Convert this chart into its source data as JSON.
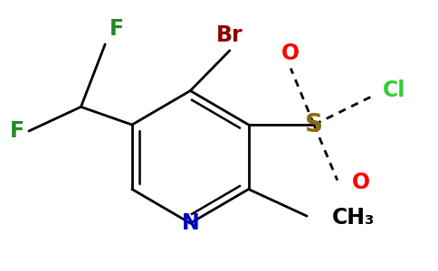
{
  "background_color": "#ffffff",
  "atom_colors": {
    "Br": "#8b0000",
    "F": "#228b22",
    "N": "#0000cd",
    "O": "#ff0000",
    "S": "#8b6914",
    "Cl": "#32cd32",
    "C": "#000000"
  },
  "figsize": [
    4.84,
    3.0
  ],
  "dpi": 100,
  "lw": 2.0
}
